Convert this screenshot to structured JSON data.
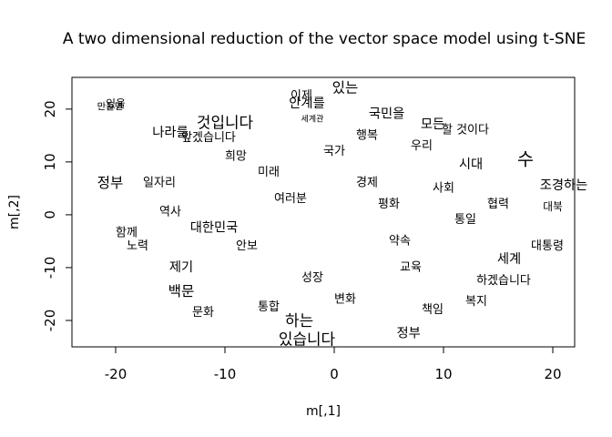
{
  "chart_data": {
    "type": "scatter",
    "title": "A two dimensional reduction of the vector space model using t-SNE",
    "xlabel": "m[,1]",
    "ylabel": "m[,2]",
    "xlim": [
      -24,
      22
    ],
    "ylim": [
      -25,
      26
    ],
    "xticks": [
      -20,
      -10,
      0,
      10,
      20
    ],
    "yticks": [
      -20,
      -10,
      0,
      10,
      20
    ],
    "grid": false,
    "legend": "none",
    "marker": "text",
    "points": [
      {
        "label": "있는",
        "x": 1,
        "y": 24,
        "size": 1.2
      },
      {
        "label": "이제",
        "x": -3,
        "y": 22.5,
        "size": 1
      },
      {
        "label": "안계를",
        "x": -2.5,
        "y": 21,
        "size": 1.1
      },
      {
        "label": "국민을",
        "x": 4.8,
        "y": 19,
        "size": 1.1
      },
      {
        "label": "세계관",
        "x": -2,
        "y": 18,
        "size": 0.7
      },
      {
        "label": "있을",
        "x": -20,
        "y": 21,
        "size": 0.9
      },
      {
        "label": "만들면",
        "x": -20.5,
        "y": 20.4,
        "size": 0.8
      },
      {
        "label": "것입니다",
        "x": -10,
        "y": 17.5,
        "size": 1.3
      },
      {
        "label": "나라를",
        "x": -15,
        "y": 15.5,
        "size": 1.1
      },
      {
        "label": "앞겠습니다",
        "x": -11.5,
        "y": 14.5,
        "size": 1
      },
      {
        "label": "할 것이다",
        "x": 12,
        "y": 16,
        "size": 1
      },
      {
        "label": "모든",
        "x": 9,
        "y": 17,
        "size": 1.1
      },
      {
        "label": "정부",
        "x": -20.5,
        "y": 6,
        "size": 1.2
      },
      {
        "label": "수",
        "x": 17.5,
        "y": 10.5,
        "size": 1.5
      },
      {
        "label": "하는",
        "x": -3.2,
        "y": -20,
        "size": 1.3
      },
      {
        "label": "있습니다",
        "x": -2.5,
        "y": -23.5,
        "size": 1.3
      },
      {
        "label": "정부",
        "x": 6.8,
        "y": -22.5,
        "size": 1.1
      },
      {
        "label": "세계",
        "x": 16,
        "y": -8.5,
        "size": 1.1
      },
      {
        "label": "백문",
        "x": -14,
        "y": -14.5,
        "size": 1.2
      },
      {
        "label": "대한민국",
        "x": -11,
        "y": -2.5,
        "size": 1.1
      },
      {
        "label": "일자리",
        "x": -16,
        "y": 6,
        "size": 1
      },
      {
        "label": "경제",
        "x": 3,
        "y": 6,
        "size": 1
      },
      {
        "label": "사회",
        "x": 10,
        "y": 5,
        "size": 1
      },
      {
        "label": "미래",
        "x": -6,
        "y": 8,
        "size": 1
      },
      {
        "label": "평화",
        "x": 5,
        "y": 2,
        "size": 1
      },
      {
        "label": "통일",
        "x": 12,
        "y": -1,
        "size": 1
      },
      {
        "label": "안보",
        "x": -8,
        "y": -6,
        "size": 1
      },
      {
        "label": "국가",
        "x": 0,
        "y": 12,
        "size": 1
      },
      {
        "label": "협력",
        "x": 15,
        "y": 2,
        "size": 1
      },
      {
        "label": "성장",
        "x": -2,
        "y": -12,
        "size": 1
      },
      {
        "label": "교육",
        "x": 7,
        "y": -10,
        "size": 1
      },
      {
        "label": "문화",
        "x": -12,
        "y": -18.5,
        "size": 1
      },
      {
        "label": "하겠습니다",
        "x": 15.5,
        "y": -12.5,
        "size": 1
      },
      {
        "label": "대통령",
        "x": 19.5,
        "y": -6,
        "size": 1
      },
      {
        "label": "여러분",
        "x": -4,
        "y": 3,
        "size": 1
      },
      {
        "label": "시대",
        "x": 12.5,
        "y": 9.5,
        "size": 1.1
      },
      {
        "label": "조경하는",
        "x": 21,
        "y": 5.5,
        "size": 1.1
      },
      {
        "label": "대북",
        "x": 20,
        "y": 1.5,
        "size": 0.9
      },
      {
        "label": "노력",
        "x": -18,
        "y": -6,
        "size": 1
      },
      {
        "label": "책임",
        "x": 9,
        "y": -18,
        "size": 1
      },
      {
        "label": "변화",
        "x": 1,
        "y": -16,
        "size": 1
      },
      {
        "label": "역사",
        "x": -15,
        "y": 0.5,
        "size": 1
      },
      {
        "label": "약속",
        "x": 6,
        "y": -5,
        "size": 1
      },
      {
        "label": "희망",
        "x": -9,
        "y": 11,
        "size": 1
      },
      {
        "label": "행복",
        "x": 3,
        "y": 15,
        "size": 1
      },
      {
        "label": "제기",
        "x": -14,
        "y": -10,
        "size": 1.1
      },
      {
        "label": "우리",
        "x": 8,
        "y": 13,
        "size": 1
      },
      {
        "label": "함께",
        "x": -19,
        "y": -3.5,
        "size": 1
      },
      {
        "label": "복지",
        "x": 13,
        "y": -16.5,
        "size": 1
      },
      {
        "label": "통합",
        "x": -6,
        "y": -17.5,
        "size": 1
      }
    ]
  }
}
